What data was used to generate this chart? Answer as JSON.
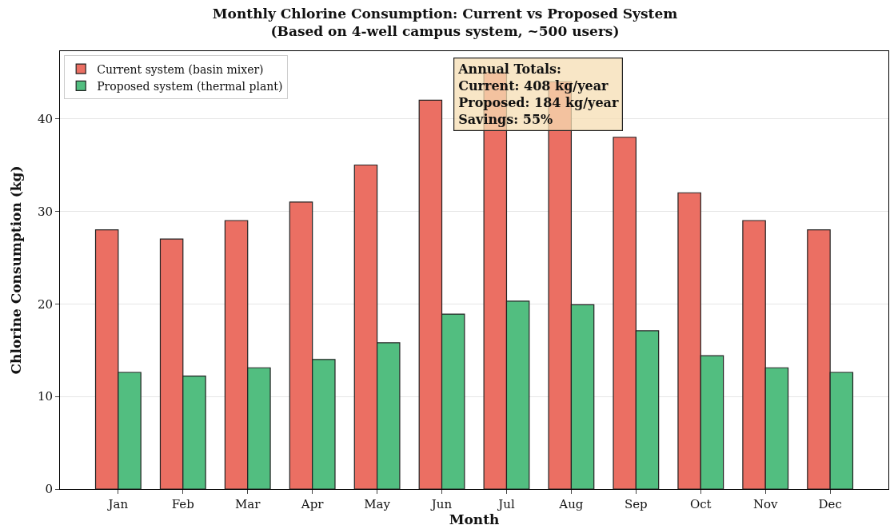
{
  "chart_data": {
    "type": "bar",
    "title": "Monthly Chlorine Consumption: Current vs Proposed System\n(Based on 4-well campus system, ~500 users)",
    "xlabel": "Month",
    "ylabel": "Chlorine Consumption (kg)",
    "categories": [
      "Jan",
      "Feb",
      "Mar",
      "Apr",
      "May",
      "Jun",
      "Jul",
      "Aug",
      "Sep",
      "Oct",
      "Nov",
      "Dec"
    ],
    "series": [
      {
        "name": "Current system (basin mixer)",
        "color": "#eb6f63",
        "values": [
          28,
          27,
          29,
          31,
          35,
          42,
          45,
          44,
          38,
          32,
          29,
          28
        ]
      },
      {
        "name": "Proposed system (thermal plant)",
        "color": "#52be80",
        "values": [
          12.6,
          12.2,
          13.1,
          14.0,
          15.8,
          18.9,
          20.3,
          19.9,
          17.1,
          14.4,
          13.1,
          12.6
        ]
      }
    ],
    "ylim": [
      0,
      47.3
    ],
    "yticks": [
      0,
      10,
      20,
      30,
      40
    ],
    "grid": "y",
    "legend": "top left",
    "annotations": [
      "Annual Totals:\nCurrent: 408 kg/year\nProposed: 184 kg/year\nSavings: 55%"
    ]
  }
}
